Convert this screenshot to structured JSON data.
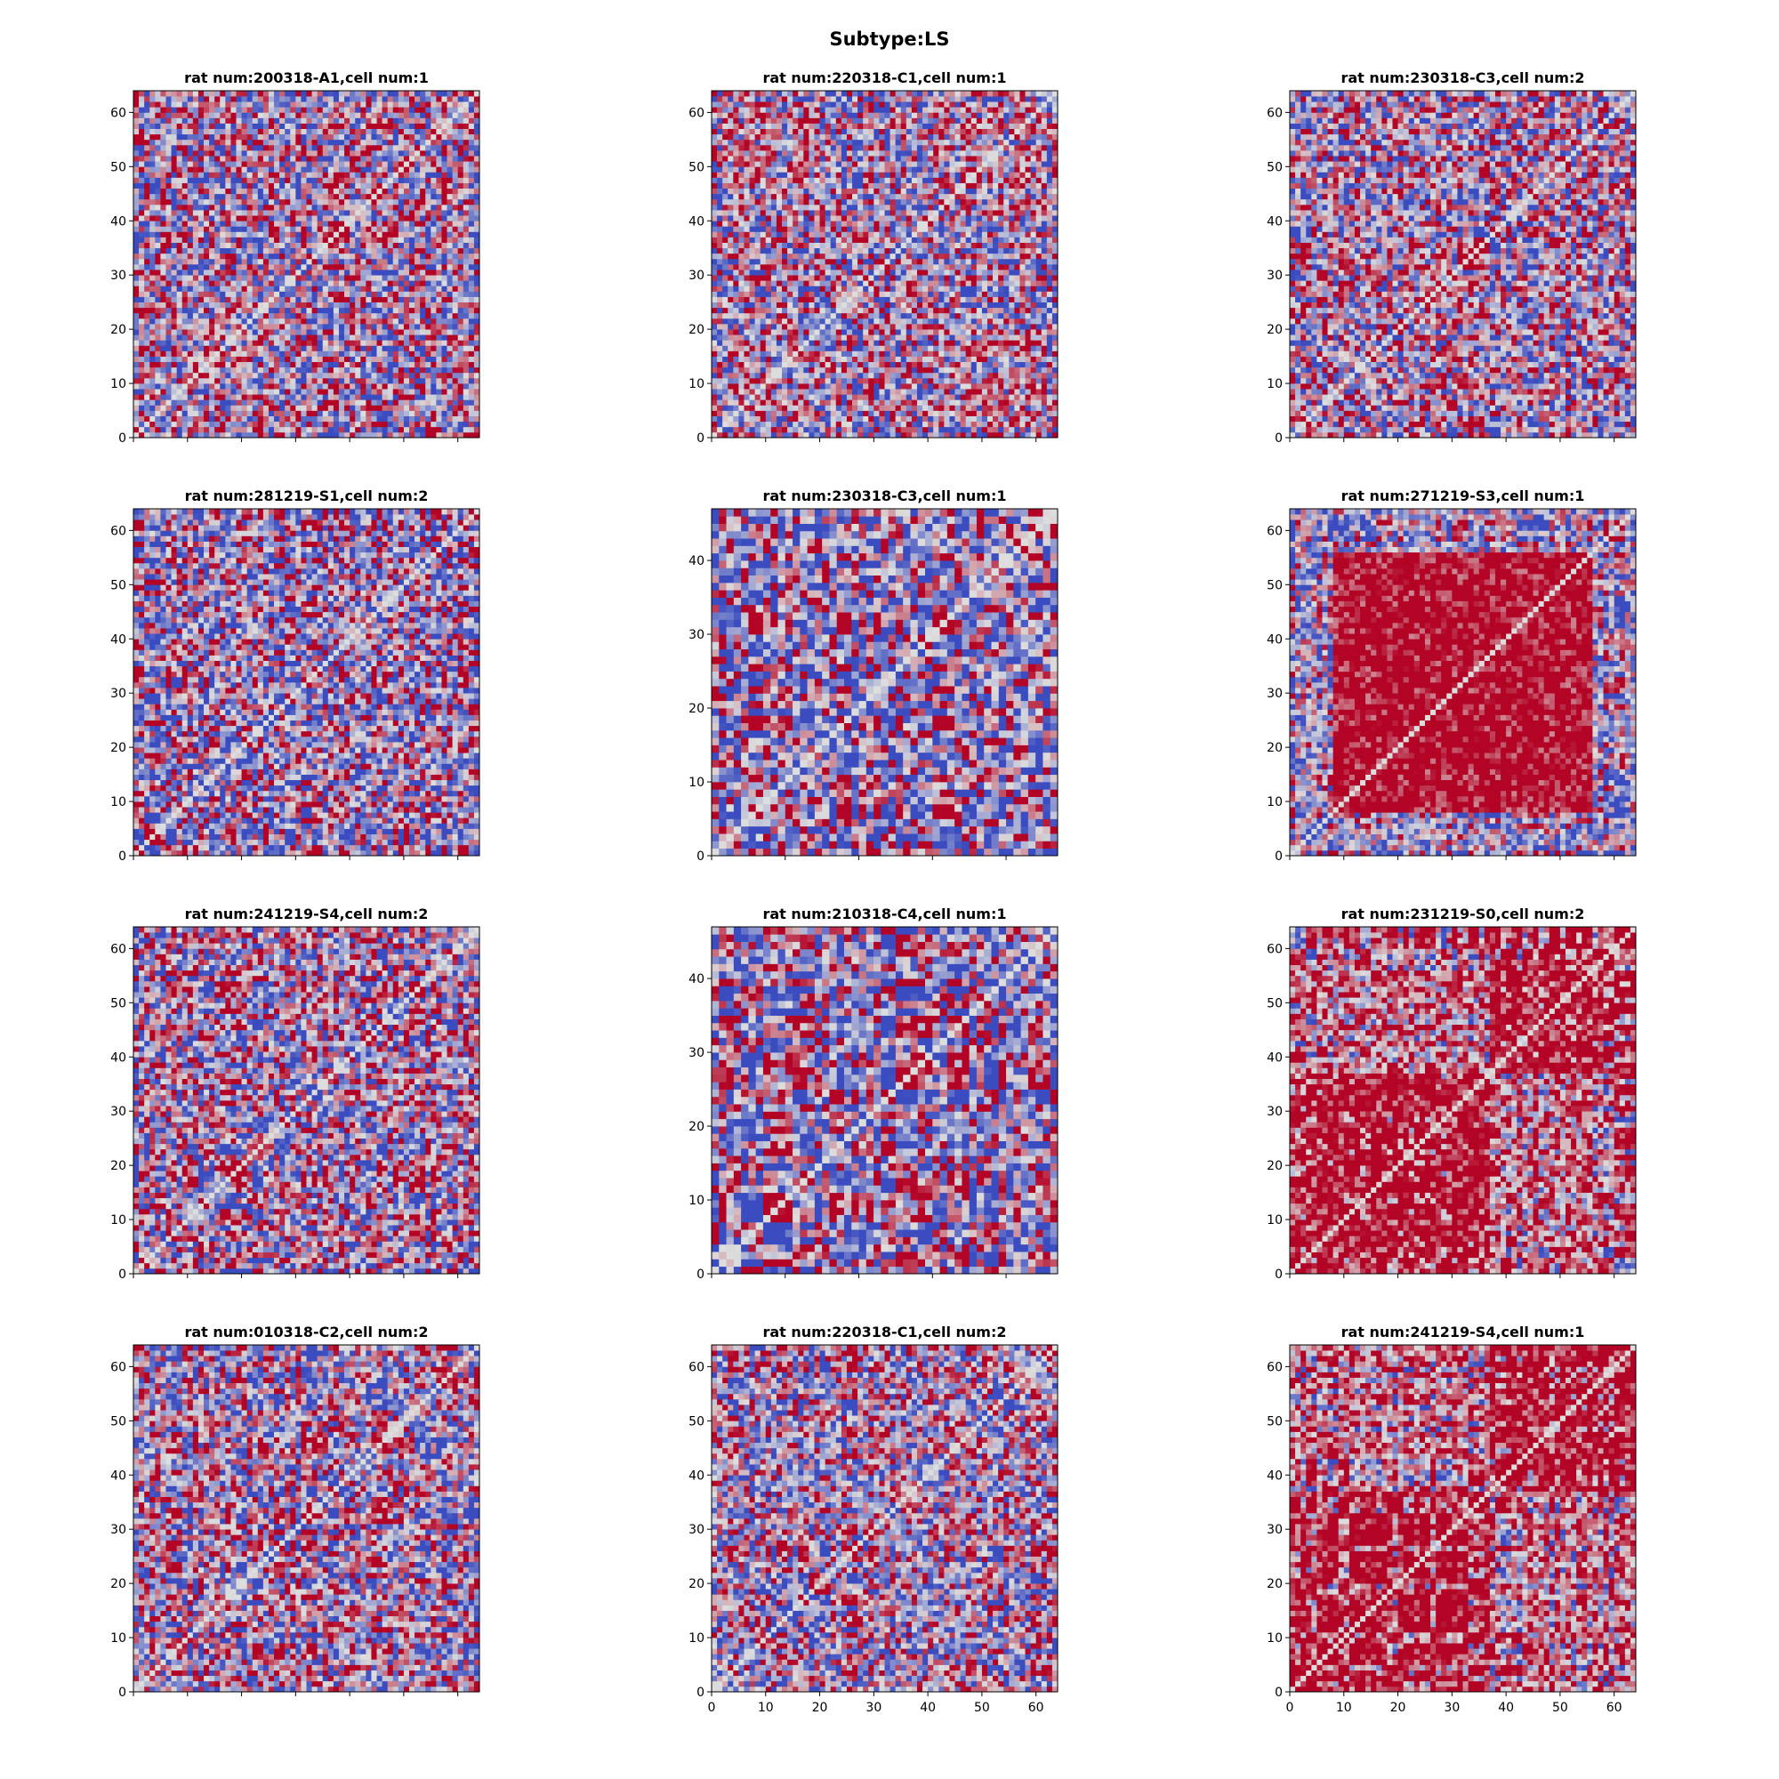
{
  "figure": {
    "title": "Subtype:LS"
  },
  "colormap": {
    "name": "coolwarm",
    "low": "#3b4cc0",
    "mid": "#dddddd",
    "high": "#b40426"
  },
  "chart_data": [
    {
      "type": "heatmap",
      "title": "rat num:200318-A1,cell num:1",
      "size": 64,
      "xlim": [
        0,
        64
      ],
      "ylim": [
        0,
        64
      ],
      "yticks": [
        0,
        10,
        20,
        30,
        40,
        50,
        60
      ],
      "xticks": [],
      "xtick_marks": [
        0,
        10,
        20,
        30,
        40,
        50,
        60
      ],
      "pattern": "noisy"
    },
    {
      "type": "heatmap",
      "title": "rat num:220318-C1,cell num:1",
      "size": 64,
      "xlim": [
        0,
        64
      ],
      "ylim": [
        0,
        64
      ],
      "yticks": [
        0,
        10,
        20,
        30,
        40,
        50,
        60
      ],
      "xticks": [],
      "xtick_marks": [
        0,
        10,
        20,
        30,
        40,
        50,
        60
      ],
      "pattern": "noisy"
    },
    {
      "type": "heatmap",
      "title": "rat num:230318-C3,cell num:2",
      "size": 64,
      "xlim": [
        0,
        64
      ],
      "ylim": [
        0,
        64
      ],
      "yticks": [
        0,
        10,
        20,
        30,
        40,
        50,
        60
      ],
      "xticks": [],
      "xtick_marks": [
        0,
        10,
        20,
        30,
        40,
        50,
        60
      ],
      "pattern": "noisy"
    },
    {
      "type": "heatmap",
      "title": "rat num:281219-S1,cell num:2",
      "size": 64,
      "xlim": [
        0,
        64
      ],
      "ylim": [
        0,
        64
      ],
      "yticks": [
        0,
        10,
        20,
        30,
        40,
        50,
        60
      ],
      "xticks": [],
      "xtick_marks": [
        0,
        10,
        20,
        30,
        40,
        50,
        60
      ],
      "pattern": "blocky"
    },
    {
      "type": "heatmap",
      "title": "rat num:230318-C3,cell num:1",
      "size": 47,
      "xlim": [
        0,
        47
      ],
      "ylim": [
        0,
        47
      ],
      "yticks": [
        0,
        10,
        20,
        30,
        40
      ],
      "xticks": [],
      "xtick_marks": [
        0,
        10,
        20,
        30,
        40
      ],
      "pattern": "blocky"
    },
    {
      "type": "heatmap",
      "title": "rat num:271219-S3,cell num:1",
      "size": 64,
      "xlim": [
        0,
        64
      ],
      "ylim": [
        0,
        64
      ],
      "yticks": [
        0,
        10,
        20,
        30,
        40,
        50,
        60
      ],
      "xticks": [],
      "xtick_marks": [
        0,
        10,
        20,
        30,
        40,
        50,
        60
      ],
      "pattern": "central"
    },
    {
      "type": "heatmap",
      "title": "rat num:241219-S4,cell num:2",
      "size": 64,
      "xlim": [
        0,
        64
      ],
      "ylim": [
        0,
        64
      ],
      "yticks": [
        0,
        10,
        20,
        30,
        40,
        50,
        60
      ],
      "xticks": [],
      "xtick_marks": [
        0,
        10,
        20,
        30,
        40,
        50,
        60
      ],
      "pattern": "noisy"
    },
    {
      "type": "heatmap",
      "title": "rat num:210318-C4,cell num:1",
      "size": 47,
      "xlim": [
        0,
        47
      ],
      "ylim": [
        0,
        47
      ],
      "yticks": [
        0,
        10,
        20,
        30,
        40
      ],
      "xticks": [],
      "xtick_marks": [
        0,
        10,
        20,
        30,
        40
      ],
      "pattern": "blocky"
    },
    {
      "type": "heatmap",
      "title": "rat num:231219-S0,cell num:2",
      "size": 64,
      "xlim": [
        0,
        64
      ],
      "ylim": [
        0,
        64
      ],
      "yticks": [
        0,
        10,
        20,
        30,
        40,
        50,
        60
      ],
      "xticks": [],
      "xtick_marks": [
        0,
        10,
        20,
        30,
        40,
        50,
        60
      ],
      "pattern": "blocks"
    },
    {
      "type": "heatmap",
      "title": "rat num:010318-C2,cell num:2",
      "size": 64,
      "xlim": [
        0,
        64
      ],
      "ylim": [
        0,
        64
      ],
      "yticks": [
        0,
        10,
        20,
        30,
        40,
        50,
        60
      ],
      "xticks": [],
      "xtick_marks": [
        0,
        10,
        20,
        30,
        40,
        50,
        60
      ],
      "pattern": "noisy"
    },
    {
      "type": "heatmap",
      "title": "rat num:220318-C1,cell num:2",
      "size": 64,
      "xlim": [
        0,
        64
      ],
      "ylim": [
        0,
        64
      ],
      "yticks": [
        0,
        10,
        20,
        30,
        40,
        50,
        60
      ],
      "xticks": [
        0,
        10,
        20,
        30,
        40,
        50,
        60
      ],
      "xtick_marks": [
        0,
        10,
        20,
        30,
        40,
        50,
        60
      ],
      "pattern": "noisy"
    },
    {
      "type": "heatmap",
      "title": "rat num:241219-S4,cell num:1",
      "size": 64,
      "xlim": [
        0,
        64
      ],
      "ylim": [
        0,
        64
      ],
      "yticks": [
        0,
        10,
        20,
        30,
        40,
        50,
        60
      ],
      "xticks": [
        0,
        10,
        20,
        30,
        40,
        50,
        60
      ],
      "xtick_marks": [
        0,
        10,
        20,
        30,
        40,
        50,
        60
      ],
      "pattern": "blocks"
    }
  ]
}
